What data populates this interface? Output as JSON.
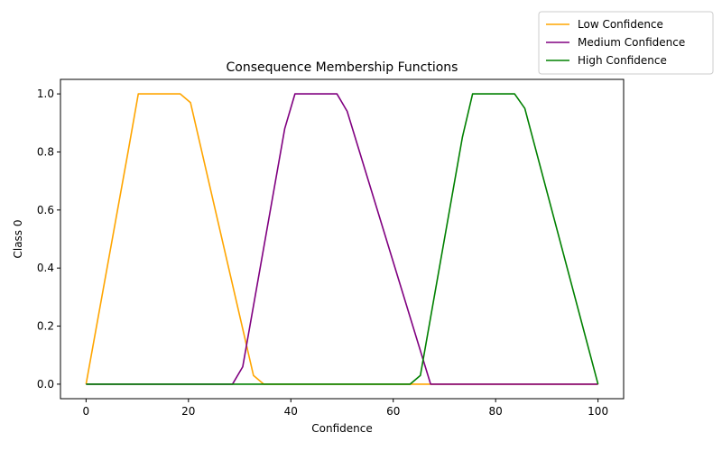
{
  "chart_data": {
    "type": "line",
    "title": "Consequence Membership Functions",
    "xlabel": "Confidence",
    "ylabel": "Class 0",
    "xlim": [
      -5,
      105
    ],
    "ylim": [
      -0.05,
      1.05
    ],
    "x_ticks": [
      0,
      20,
      40,
      60,
      80,
      100
    ],
    "y_ticks": [
      0.0,
      0.2,
      0.4,
      0.6,
      0.8,
      1.0
    ],
    "x_tick_labels": [
      "0",
      "20",
      "40",
      "60",
      "80",
      "100"
    ],
    "y_tick_labels": [
      "0.0",
      "0.2",
      "0.4",
      "0.6",
      "0.8",
      "1.0"
    ],
    "grid": false,
    "legend_position": "top-right (outside axes)",
    "series": [
      {
        "name": "Low Confidence",
        "color": "#ffa500",
        "x": [
          0,
          8.2,
          10.2,
          18.4,
          20.4,
          32.7,
          34.7,
          100
        ],
        "y": [
          0.0,
          0.8,
          1.0,
          1.0,
          0.97,
          0.03,
          0.0,
          0.0
        ]
      },
      {
        "name": "Medium Confidence",
        "color": "#800080",
        "x": [
          0,
          28.6,
          30.6,
          38.8,
          40.8,
          49.0,
          51.0,
          67.3,
          100
        ],
        "y": [
          0.0,
          0.0,
          0.06,
          0.88,
          1.0,
          1.0,
          0.94,
          0.0,
          0.0
        ]
      },
      {
        "name": "High Confidence",
        "color": "#008000",
        "x": [
          0,
          63.3,
          65.3,
          73.5,
          75.5,
          83.7,
          85.7,
          100
        ],
        "y": [
          0.0,
          0.0,
          0.03,
          0.85,
          1.0,
          1.0,
          0.95,
          0.0
        ]
      }
    ]
  }
}
